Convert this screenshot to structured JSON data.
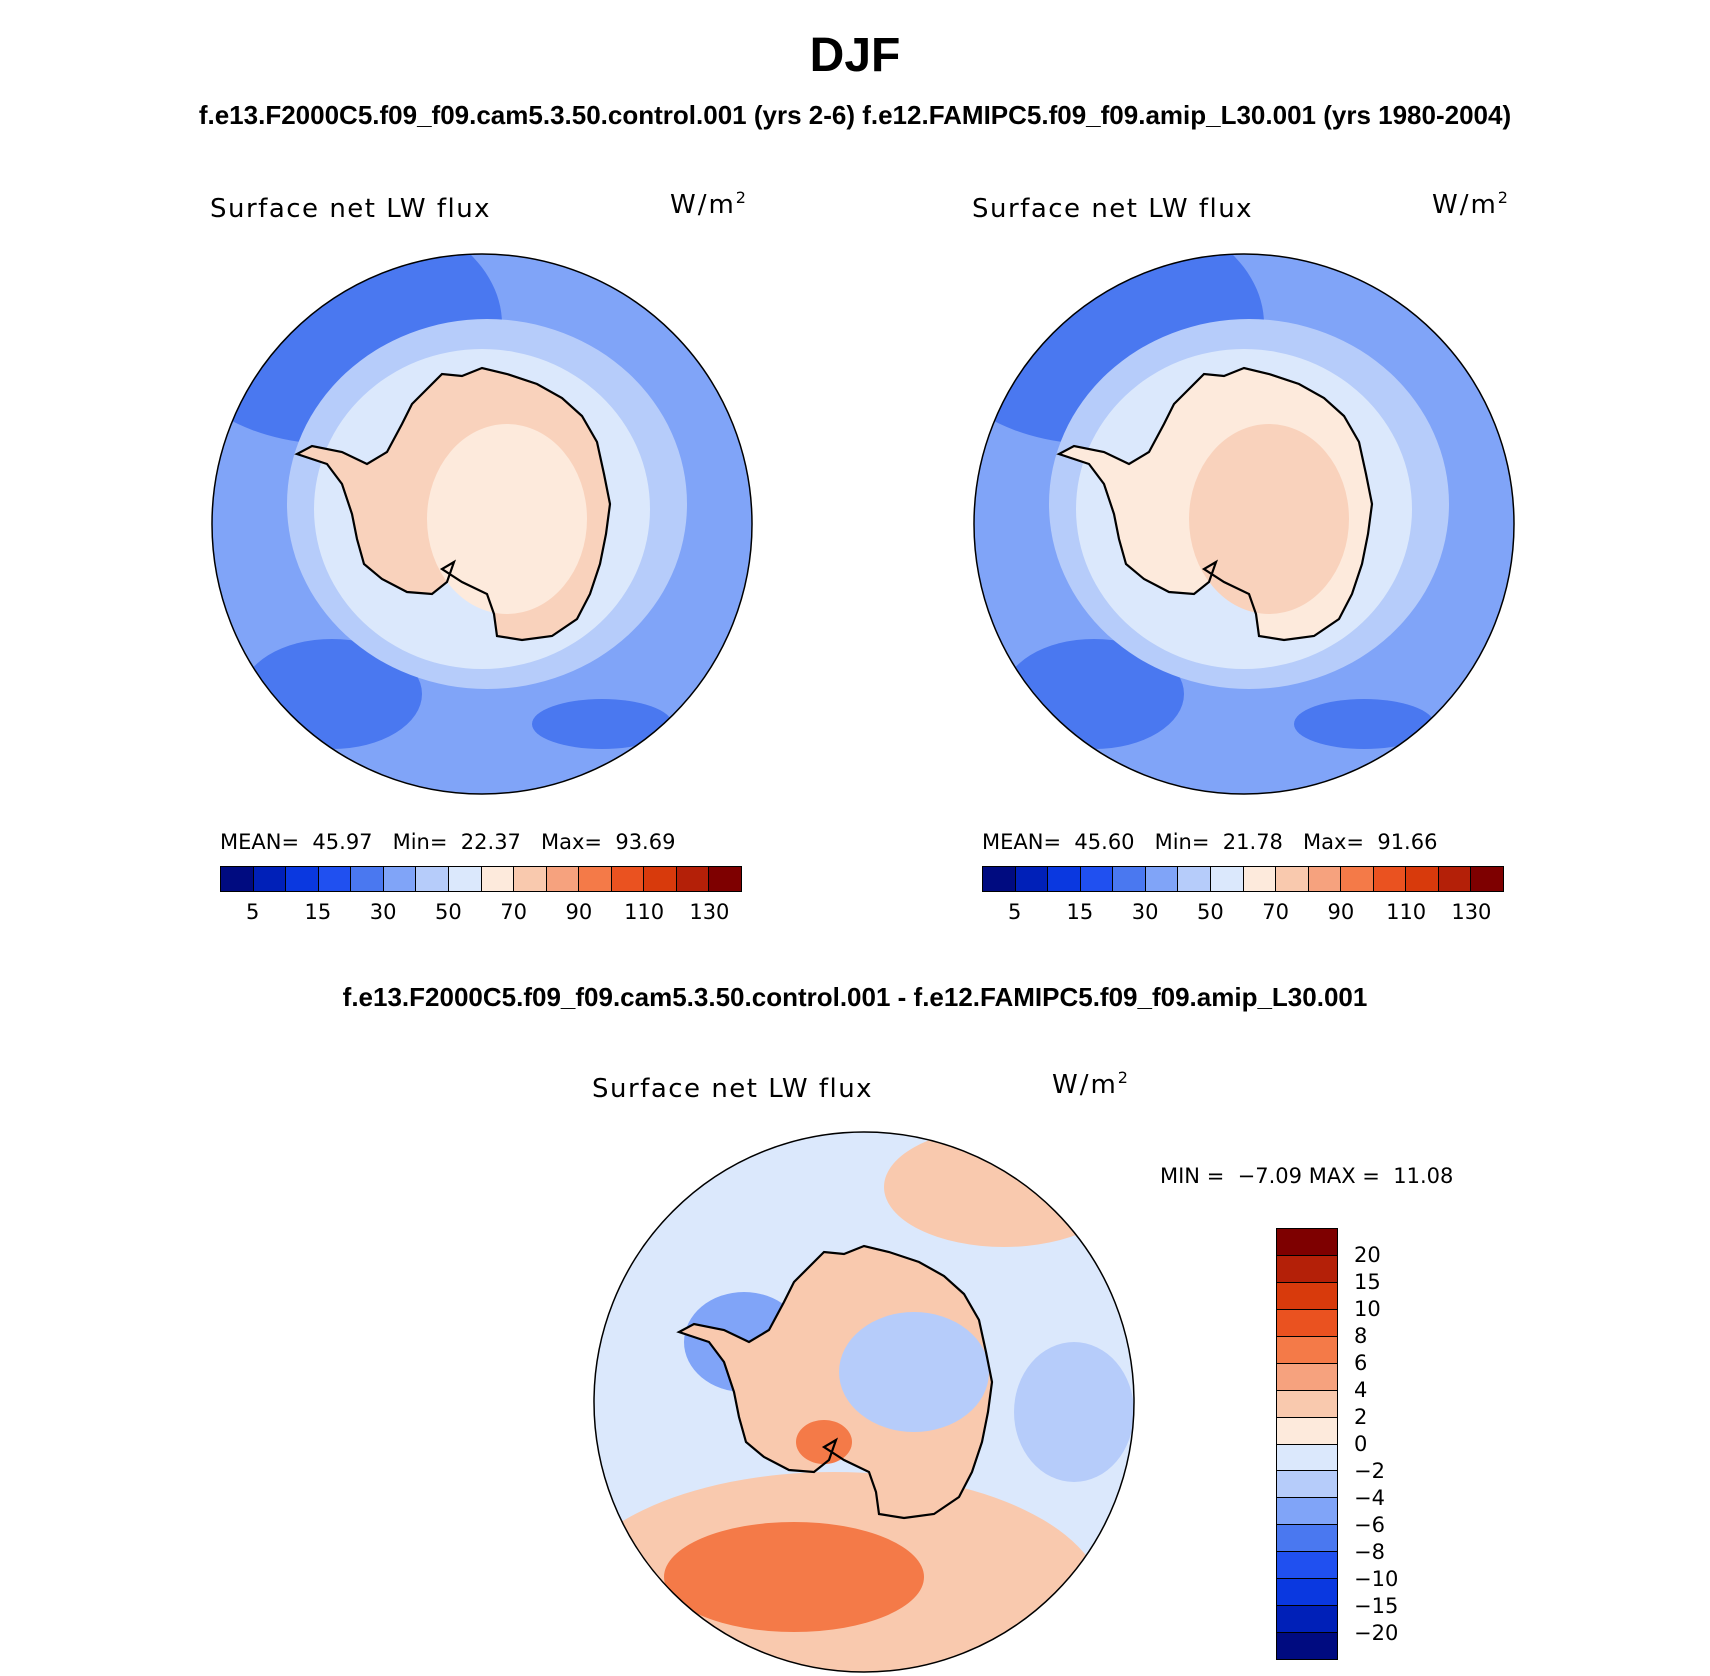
{
  "header": {
    "season": "DJF",
    "subtitle_top": "f.e13.F2000C5.f09_f09.cam5.3.50.control.001 (yrs 2-6)  f.e12.FAMIPC5.f09_f09.amip_L30.001 (yrs 1980-2004)",
    "subtitle_diff": "f.e13.F2000C5.f09_f09.cam5.3.50.control.001 - f.e12.FAMIPC5.f09_f09.amip_L30.001"
  },
  "chart_data": [
    {
      "type": "heatmap",
      "projection": "south polar stereographic",
      "title": "Surface net LW flux",
      "units": "W/m",
      "units_exponent": "2",
      "stats": {
        "mean_label": "MEAN=",
        "mean": "45.97",
        "min_label": "Min=",
        "min": "22.37",
        "max_label": "Max=",
        "max": "93.69"
      },
      "levels": [
        "5",
        "15",
        "30",
        "50",
        "70",
        "90",
        "110",
        "130"
      ],
      "colorbar": [
        "#000b80",
        "#0020b8",
        "#0a38e0",
        "#2050f0",
        "#4a78f0",
        "#80a4f8",
        "#b6ccfa",
        "#dbe8fc",
        "#fdeadc",
        "#f9c9ae",
        "#f6a27e",
        "#f47a48",
        "#ea5220",
        "#d83a0c",
        "#b42008",
        "#7e0000"
      ],
      "regions": {
        "ocean_north": "#4a78f0",
        "ocean_mid": "#80a4f8",
        "ice_edge": "#b6ccfa",
        "coast": "#dbe8fc",
        "continent": "#f9d2bc",
        "interior": "#fdeadc"
      }
    },
    {
      "type": "heatmap",
      "projection": "south polar stereographic",
      "title": "Surface net LW flux",
      "units": "W/m",
      "units_exponent": "2",
      "stats": {
        "mean_label": "MEAN=",
        "mean": "45.60",
        "min_label": "Min=",
        "min": "21.78",
        "max_label": "Max=",
        "max": "91.66"
      },
      "levels": [
        "5",
        "15",
        "30",
        "50",
        "70",
        "90",
        "110",
        "130"
      ],
      "colorbar": [
        "#000b80",
        "#0020b8",
        "#0a38e0",
        "#2050f0",
        "#4a78f0",
        "#80a4f8",
        "#b6ccfa",
        "#dbe8fc",
        "#fdeadc",
        "#f9c9ae",
        "#f6a27e",
        "#f47a48",
        "#ea5220",
        "#d83a0c",
        "#b42008",
        "#7e0000"
      ],
      "regions": {
        "ocean_north": "#4a78f0",
        "ocean_mid": "#80a4f8",
        "ice_edge": "#b6ccfa",
        "coast": "#dbe8fc",
        "continent": "#fdeadc",
        "interior": "#f9d2bc"
      }
    },
    {
      "type": "heatmap",
      "projection": "south polar stereographic",
      "title": "Surface net LW flux",
      "units": "W/m",
      "units_exponent": "2",
      "stats": {
        "min_label": "MIN =",
        "min": "−7.09",
        "max_label": "MAX =",
        "max": "11.08"
      },
      "levels": [
        "20",
        "15",
        "10",
        "8",
        "6",
        "4",
        "2",
        "0",
        "−2",
        "−4",
        "−6",
        "−8",
        "−10",
        "−15",
        "−20"
      ],
      "colorbar": [
        "#7e0000",
        "#b42008",
        "#d83a0c",
        "#ea5220",
        "#f47a48",
        "#f6a27e",
        "#f9c9ae",
        "#fdeadc",
        "#dbe8fc",
        "#b6ccfa",
        "#80a4f8",
        "#4a78f0",
        "#2050f0",
        "#0a38e0",
        "#0020b8",
        "#000b80"
      ],
      "regions": {
        "background": "#dbe8fc",
        "positive": "#f9c9ae",
        "strong_positive": "#f47a48",
        "negative": "#b6ccfa",
        "strong_negative": "#80a4f8"
      }
    }
  ]
}
